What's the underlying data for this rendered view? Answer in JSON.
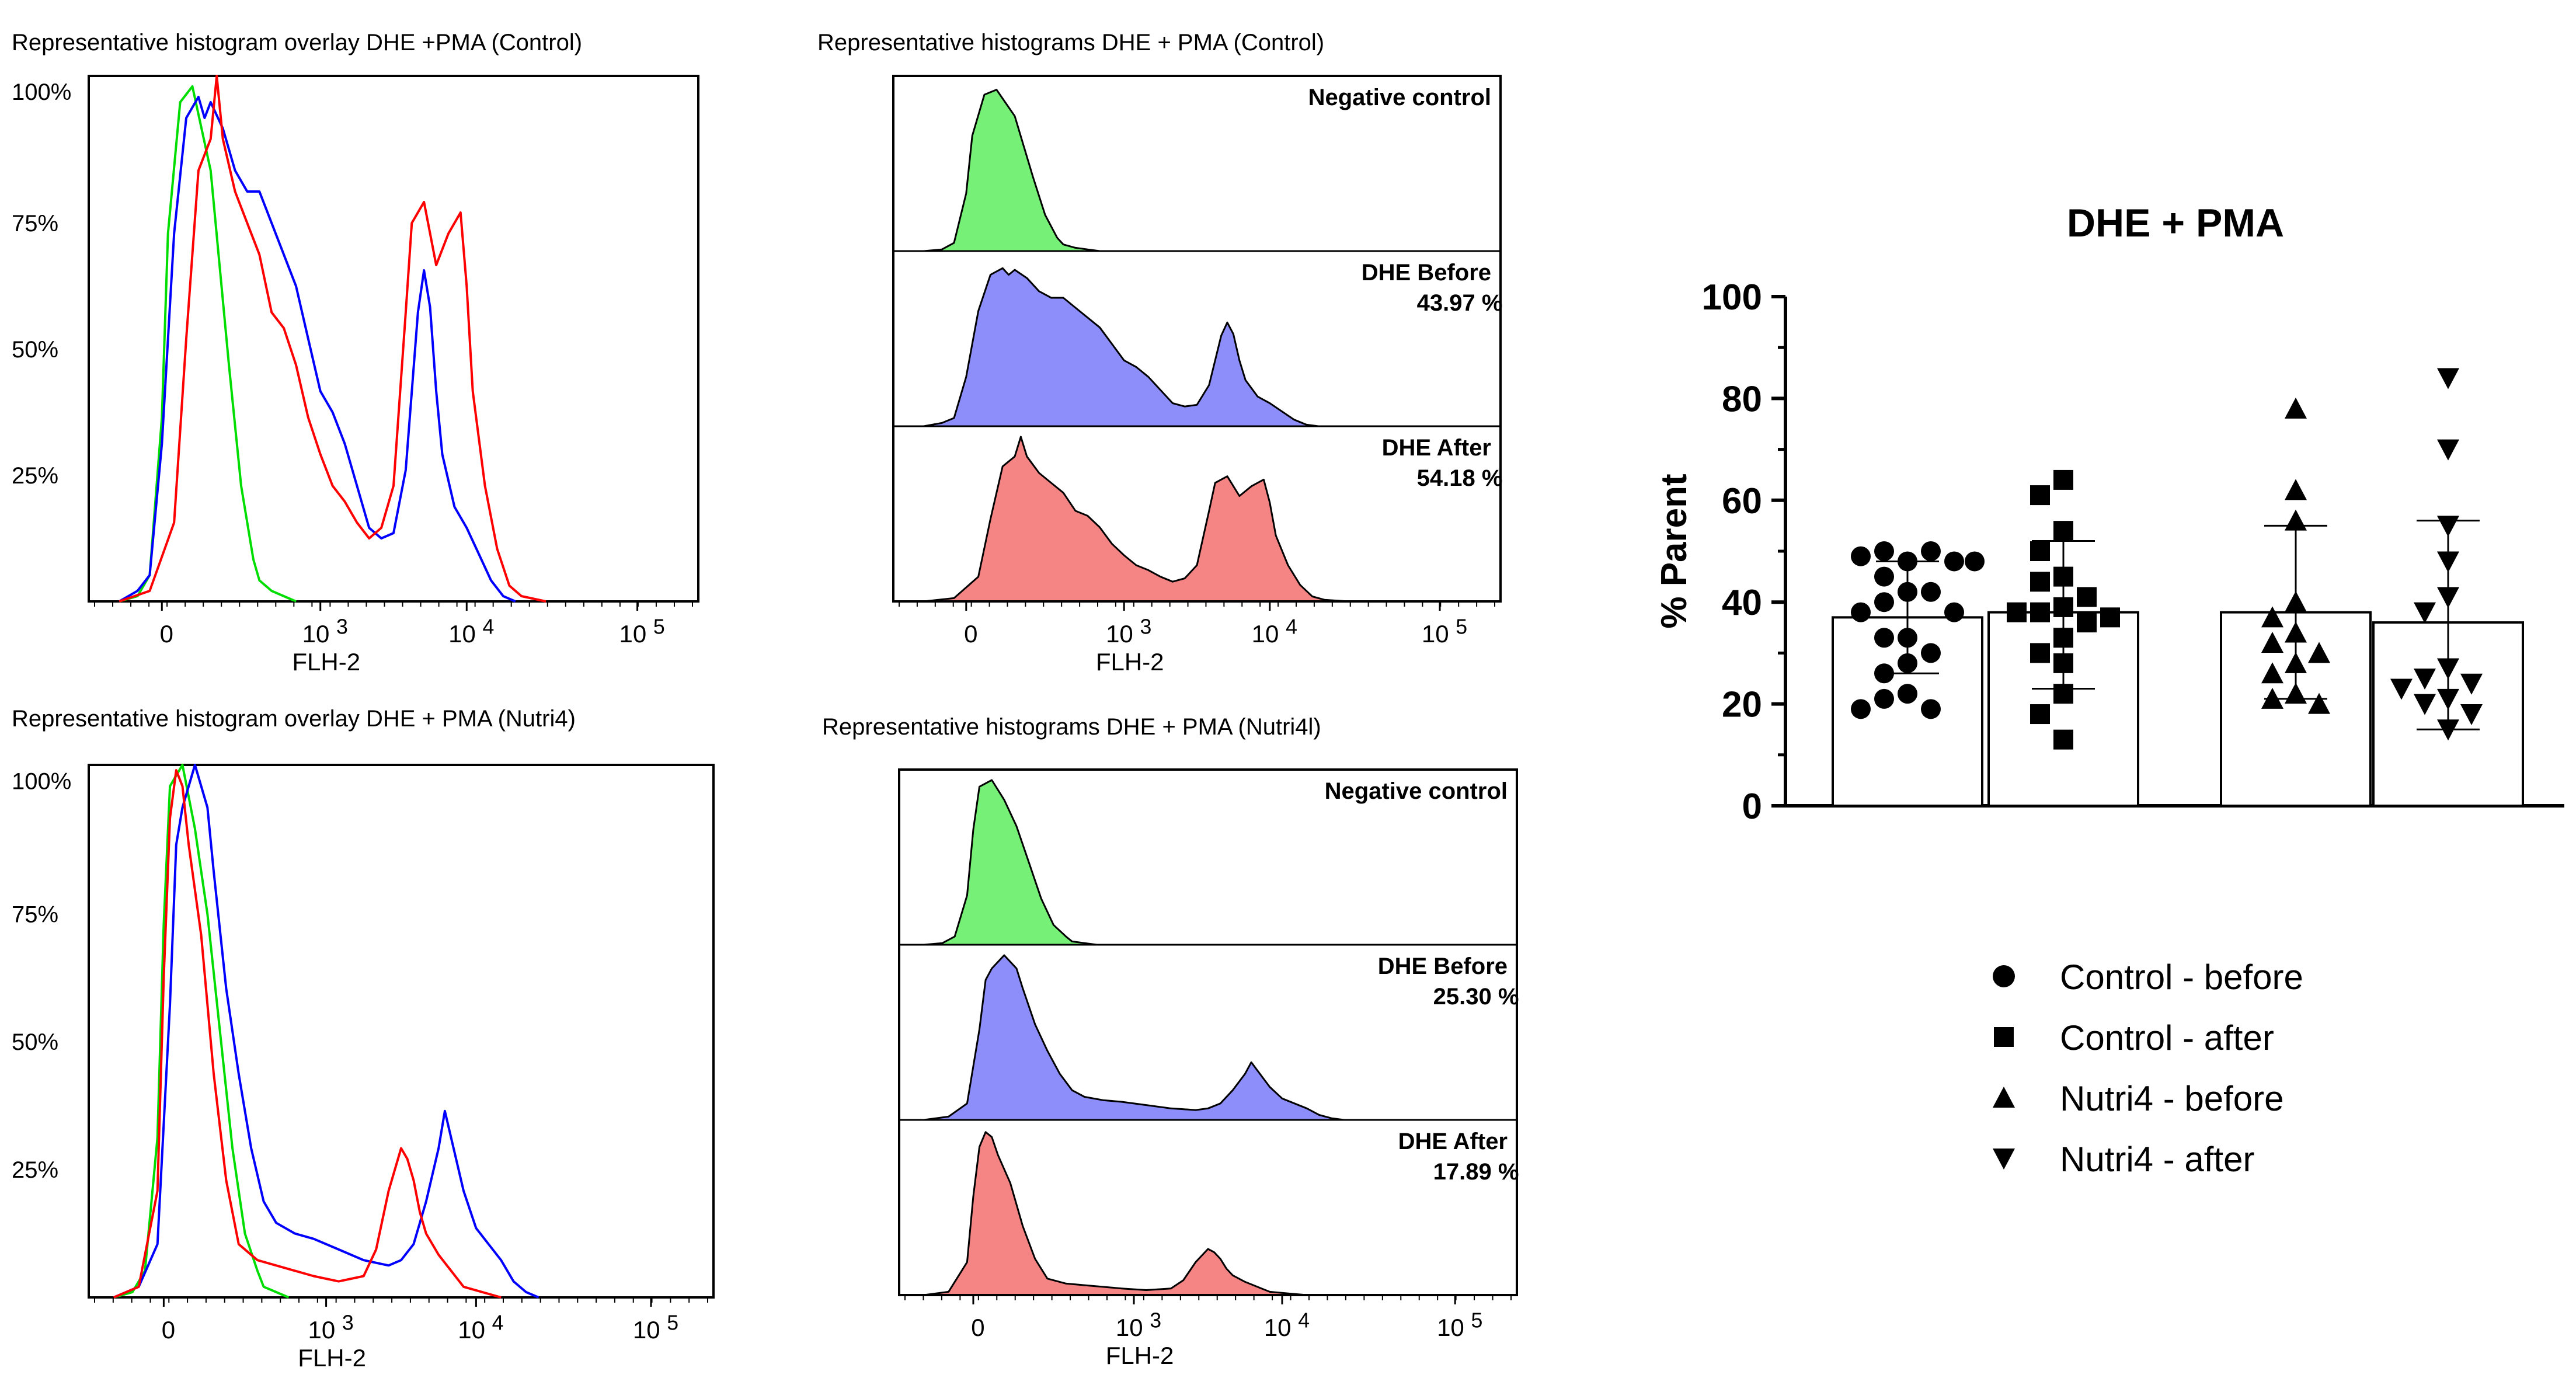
{
  "colors": {
    "green": "#00dd00",
    "blue": "#0000ff",
    "red": "#ff0000",
    "fill_green": "#77f077",
    "fill_blue": "#8e8efa",
    "fill_red": "#f58585"
  },
  "chart_data": [
    {
      "type": "line",
      "title": "Representative histogram overlay DHE +PMA (Control)",
      "xlabel": "FLH-2",
      "x_ticks": [
        "0",
        "10^3",
        "10^4",
        "10^5"
      ],
      "y_ticks": [
        "100%",
        "75%",
        "50%",
        "25%"
      ],
      "x_scale": "biexponential (position 0-1)",
      "series": [
        {
          "name": "Negative control",
          "color": "green",
          "x": [
            0.05,
            0.08,
            0.1,
            0.12,
            0.13,
            0.15,
            0.17,
            0.2,
            0.23,
            0.25,
            0.27,
            0.28,
            0.3,
            0.32,
            0.34
          ],
          "y": [
            0,
            1,
            5,
            35,
            70,
            95,
            98,
            82,
            45,
            22,
            8,
            4,
            2,
            1,
            0
          ]
        },
        {
          "name": "DHE Before",
          "color": "blue",
          "x": [
            0.05,
            0.08,
            0.1,
            0.12,
            0.14,
            0.16,
            0.18,
            0.19,
            0.2,
            0.22,
            0.24,
            0.26,
            0.28,
            0.3,
            0.32,
            0.34,
            0.36,
            0.38,
            0.4,
            0.42,
            0.44,
            0.46,
            0.48,
            0.5,
            0.52,
            0.54,
            0.55,
            0.56,
            0.57,
            0.58,
            0.6,
            0.62,
            0.64,
            0.66,
            0.68,
            0.7
          ],
          "y": [
            0,
            2,
            5,
            30,
            70,
            92,
            96,
            92,
            95,
            90,
            82,
            78,
            78,
            72,
            66,
            60,
            50,
            40,
            36,
            30,
            22,
            14,
            12,
            13,
            25,
            55,
            63,
            56,
            40,
            28,
            18,
            14,
            9,
            4,
            1,
            0
          ]
        },
        {
          "name": "DHE After",
          "color": "red",
          "x": [
            0.05,
            0.1,
            0.14,
            0.16,
            0.18,
            0.2,
            0.21,
            0.22,
            0.24,
            0.26,
            0.28,
            0.3,
            0.32,
            0.34,
            0.36,
            0.38,
            0.4,
            0.42,
            0.44,
            0.46,
            0.48,
            0.5,
            0.52,
            0.53,
            0.55,
            0.57,
            0.59,
            0.61,
            0.62,
            0.63,
            0.65,
            0.67,
            0.69,
            0.71,
            0.75
          ],
          "y": [
            0,
            2,
            15,
            50,
            82,
            88,
            100,
            88,
            78,
            72,
            66,
            55,
            52,
            45,
            35,
            28,
            22,
            19,
            15,
            12,
            14,
            22,
            55,
            72,
            76,
            64,
            70,
            74,
            60,
            40,
            22,
            10,
            3,
            1,
            0
          ]
        }
      ]
    },
    {
      "type": "area",
      "title": "Representative histograms DHE + PMA (Control)",
      "xlabel": "FLH-2",
      "x_ticks": [
        "0",
        "10^3",
        "10^4",
        "10^5"
      ],
      "panels": [
        {
          "label": "Negative control",
          "value": "",
          "color": "fill_green",
          "x": [
            0.05,
            0.08,
            0.1,
            0.12,
            0.13,
            0.15,
            0.17,
            0.2,
            0.23,
            0.25,
            0.27,
            0.28,
            0.3,
            0.32,
            0.34
          ],
          "y": [
            0,
            1,
            5,
            35,
            70,
            95,
            98,
            82,
            45,
            22,
            8,
            4,
            2,
            1,
            0
          ]
        },
        {
          "label": "DHE Before",
          "value": "43.97 %",
          "color": "fill_blue",
          "x": [
            0.05,
            0.08,
            0.1,
            0.12,
            0.14,
            0.16,
            0.18,
            0.19,
            0.2,
            0.22,
            0.24,
            0.26,
            0.28,
            0.3,
            0.32,
            0.34,
            0.36,
            0.38,
            0.4,
            0.42,
            0.44,
            0.46,
            0.48,
            0.5,
            0.52,
            0.54,
            0.55,
            0.56,
            0.57,
            0.58,
            0.6,
            0.62,
            0.64,
            0.66,
            0.68,
            0.7
          ],
          "y": [
            0,
            2,
            5,
            30,
            70,
            92,
            96,
            92,
            95,
            90,
            82,
            78,
            78,
            72,
            66,
            60,
            50,
            40,
            36,
            30,
            22,
            14,
            12,
            13,
            25,
            55,
            63,
            56,
            40,
            28,
            18,
            14,
            9,
            4,
            1,
            0
          ]
        },
        {
          "label": "DHE After",
          "value": "54.18 %",
          "color": "fill_red",
          "x": [
            0.05,
            0.1,
            0.14,
            0.16,
            0.18,
            0.2,
            0.21,
            0.22,
            0.24,
            0.26,
            0.28,
            0.3,
            0.32,
            0.34,
            0.36,
            0.38,
            0.4,
            0.42,
            0.44,
            0.46,
            0.48,
            0.5,
            0.52,
            0.53,
            0.55,
            0.57,
            0.59,
            0.61,
            0.62,
            0.63,
            0.65,
            0.67,
            0.69,
            0.71,
            0.75
          ],
          "y": [
            0,
            2,
            15,
            50,
            82,
            88,
            100,
            88,
            78,
            72,
            66,
            55,
            52,
            45,
            35,
            28,
            22,
            19,
            15,
            12,
            14,
            22,
            55,
            72,
            76,
            64,
            70,
            74,
            60,
            40,
            22,
            10,
            3,
            1,
            0
          ]
        }
      ]
    },
    {
      "type": "line",
      "title": "Representative histogram overlay DHE + PMA (Nutri4)",
      "xlabel": "FLH-2",
      "x_ticks": [
        "0",
        "10^3",
        "10^4",
        "10^5"
      ],
      "y_ticks": [
        "100%",
        "75%",
        "50%",
        "25%"
      ],
      "x_scale": "biexponential (position 0-1)",
      "series": [
        {
          "name": "Negative control",
          "color": "green",
          "x": [
            0.04,
            0.07,
            0.09,
            0.11,
            0.12,
            0.13,
            0.15,
            0.17,
            0.19,
            0.21,
            0.23,
            0.25,
            0.27,
            0.28,
            0.3,
            0.32
          ],
          "y": [
            0,
            1,
            5,
            30,
            70,
            96,
            100,
            88,
            72,
            50,
            28,
            12,
            5,
            2,
            1,
            0
          ]
        },
        {
          "name": "DHE Before",
          "color": "blue",
          "x": [
            0.04,
            0.08,
            0.11,
            0.13,
            0.14,
            0.15,
            0.16,
            0.17,
            0.19,
            0.2,
            0.22,
            0.24,
            0.26,
            0.28,
            0.3,
            0.33,
            0.36,
            0.4,
            0.44,
            0.48,
            0.5,
            0.52,
            0.54,
            0.56,
            0.57,
            0.58,
            0.6,
            0.62,
            0.64,
            0.66,
            0.68,
            0.7,
            0.72
          ],
          "y": [
            0,
            2,
            10,
            55,
            85,
            92,
            96,
            100,
            92,
            80,
            58,
            42,
            28,
            18,
            14,
            12,
            11,
            9,
            7,
            6,
            7,
            10,
            18,
            28,
            35,
            30,
            20,
            13,
            10,
            7,
            3,
            1,
            0
          ]
        },
        {
          "name": "DHE After",
          "color": "red",
          "x": [
            0.04,
            0.08,
            0.11,
            0.12,
            0.13,
            0.14,
            0.15,
            0.16,
            0.18,
            0.2,
            0.22,
            0.24,
            0.27,
            0.3,
            0.33,
            0.36,
            0.4,
            0.44,
            0.46,
            0.48,
            0.5,
            0.51,
            0.52,
            0.53,
            0.54,
            0.56,
            0.58,
            0.6,
            0.63,
            0.66
          ],
          "y": [
            0,
            2,
            20,
            60,
            90,
            99,
            96,
            85,
            68,
            42,
            22,
            10,
            7,
            6,
            5,
            4,
            3,
            4,
            9,
            20,
            28,
            26,
            22,
            16,
            12,
            8,
            5,
            2,
            1,
            0
          ]
        }
      ]
    },
    {
      "type": "area",
      "title": "Representative histograms DHE + PMA (Nutri4l)",
      "xlabel": "FLH-2",
      "x_ticks": [
        "0",
        "10^3",
        "10^4",
        "10^5"
      ],
      "panels": [
        {
          "label": "Negative control",
          "value": "",
          "color": "fill_green",
          "x": [
            0.04,
            0.07,
            0.09,
            0.11,
            0.12,
            0.13,
            0.15,
            0.17,
            0.19,
            0.21,
            0.23,
            0.25,
            0.27,
            0.28,
            0.3,
            0.32
          ],
          "y": [
            0,
            1,
            5,
            30,
            70,
            96,
            100,
            88,
            72,
            50,
            28,
            12,
            5,
            2,
            1,
            0
          ]
        },
        {
          "label": "DHE Before",
          "value": "25.30 %",
          "color": "fill_blue",
          "x": [
            0.04,
            0.08,
            0.11,
            0.13,
            0.14,
            0.15,
            0.16,
            0.17,
            0.19,
            0.2,
            0.22,
            0.24,
            0.26,
            0.28,
            0.3,
            0.33,
            0.36,
            0.4,
            0.44,
            0.48,
            0.5,
            0.52,
            0.54,
            0.56,
            0.57,
            0.58,
            0.6,
            0.62,
            0.64,
            0.66,
            0.68,
            0.7,
            0.72
          ],
          "y": [
            0,
            2,
            10,
            55,
            85,
            92,
            96,
            100,
            92,
            80,
            58,
            42,
            28,
            18,
            14,
            12,
            11,
            9,
            7,
            6,
            7,
            10,
            18,
            28,
            35,
            30,
            20,
            13,
            10,
            7,
            3,
            1,
            0
          ]
        },
        {
          "label": "DHE After",
          "value": "17.89 %",
          "color": "fill_red",
          "x": [
            0.04,
            0.08,
            0.11,
            0.12,
            0.13,
            0.14,
            0.15,
            0.16,
            0.18,
            0.2,
            0.22,
            0.24,
            0.27,
            0.3,
            0.33,
            0.36,
            0.4,
            0.44,
            0.46,
            0.48,
            0.5,
            0.51,
            0.52,
            0.53,
            0.54,
            0.56,
            0.58,
            0.6,
            0.63,
            0.66
          ],
          "y": [
            0,
            2,
            20,
            60,
            90,
            99,
            96,
            85,
            68,
            42,
            22,
            10,
            7,
            6,
            5,
            4,
            3,
            4,
            9,
            20,
            28,
            26,
            22,
            16,
            12,
            8,
            5,
            2,
            1,
            0
          ]
        }
      ]
    },
    {
      "type": "bar",
      "title": "DHE + PMA",
      "ylabel": "% Parent",
      "ylim": [
        0,
        100
      ],
      "y_ticks": [
        0,
        20,
        40,
        60,
        80,
        100
      ],
      "legend": [
        {
          "label": "Control - before",
          "marker": "circle"
        },
        {
          "label": "Control - after",
          "marker": "square"
        },
        {
          "label": "Nutri4 - before",
          "marker": "triangle-up"
        },
        {
          "label": "Nutri4 - after",
          "marker": "triangle-down"
        }
      ],
      "groups": [
        {
          "name": "Control - before",
          "marker": "circle",
          "mean": 37,
          "sd_low": 26,
          "sd_high": 48,
          "points": [
            48,
            50,
            50,
            49,
            48,
            48,
            45,
            42,
            42,
            40,
            38,
            38,
            33,
            33,
            30,
            28,
            26,
            22,
            21,
            19,
            19
          ]
        },
        {
          "name": "Control - after",
          "marker": "square",
          "mean": 38,
          "sd_low": 23,
          "sd_high": 52,
          "points": [
            64,
            61,
            54,
            50,
            45,
            44,
            41,
            39,
            38,
            38,
            37,
            36,
            33,
            30,
            28,
            22,
            18,
            13
          ]
        },
        {
          "name": "Nutri4 - before",
          "marker": "triangle-up",
          "mean": 38,
          "sd_low": 21,
          "sd_high": 55,
          "points": [
            78,
            62,
            56,
            40,
            37,
            34,
            32,
            30,
            28,
            26,
            22,
            21,
            20
          ]
        },
        {
          "name": "Nutri4 - after",
          "marker": "triangle-down",
          "mean": 36,
          "sd_low": 15,
          "sd_high": 56,
          "points": [
            84,
            70,
            55,
            48,
            41,
            38,
            27,
            25,
            24,
            23,
            21,
            20,
            18,
            15
          ]
        }
      ]
    }
  ]
}
